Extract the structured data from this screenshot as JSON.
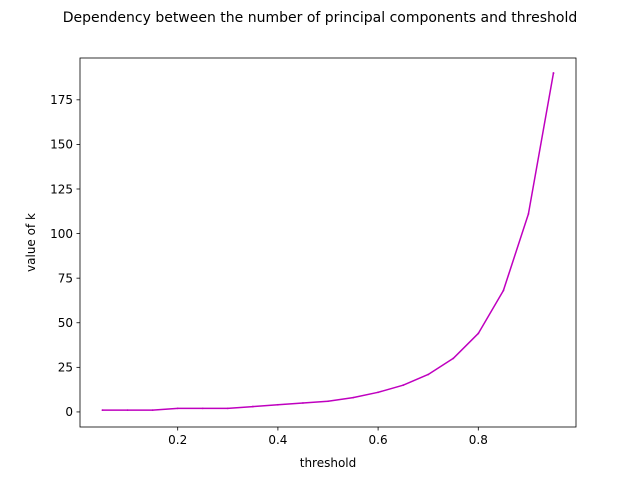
{
  "chart_data": {
    "type": "line",
    "title": "Dependency between the number of principal components and threshold",
    "xlabel": "threshold",
    "ylabel": "value of k",
    "xlim": [
      0.005,
      0.995
    ],
    "ylim": [
      -8.45,
      198.45
    ],
    "xticks": [
      0.2,
      0.4,
      0.6,
      0.8
    ],
    "xtick_labels": [
      "0.2",
      "0.4",
      "0.6",
      "0.8"
    ],
    "yticks": [
      0,
      25,
      50,
      75,
      100,
      125,
      150,
      175
    ],
    "ytick_labels": [
      "0",
      "25",
      "50",
      "75",
      "100",
      "125",
      "150",
      "175"
    ],
    "grid": false,
    "series": [
      {
        "color": "#bf00bf",
        "x": [
          0.05,
          0.1,
          0.15,
          0.2,
          0.25,
          0.3,
          0.35,
          0.4,
          0.45,
          0.5,
          0.55,
          0.6,
          0.65,
          0.7,
          0.75,
          0.8,
          0.85,
          0.9,
          0.95
        ],
        "y": [
          1,
          1,
          1,
          2,
          2,
          2,
          3,
          4,
          5,
          6,
          8,
          11,
          15,
          21,
          30,
          44,
          68,
          111,
          190
        ]
      }
    ]
  }
}
